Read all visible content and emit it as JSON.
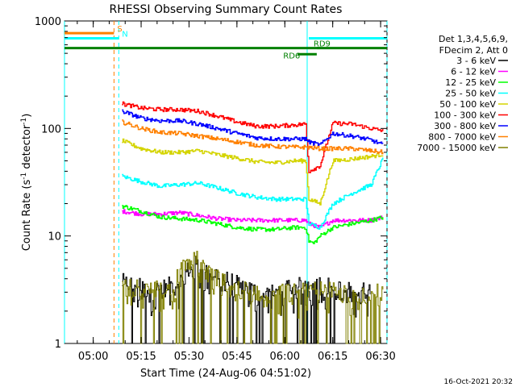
{
  "chart_data": {
    "type": "line",
    "title": "RHESSI Observing Summary Count Rates",
    "xlabel": "Start Time (24-Aug-06 04:51:02)",
    "ylabel": "Count Rate (s⁻¹ detector⁻¹)",
    "ylabel_parts": [
      "Count Rate (s",
      "-1",
      " detector",
      "-1",
      ")"
    ],
    "x_unit": "minutes after 04:51:02",
    "xlim": [
      0,
      101
    ],
    "ylim": [
      1,
      1000
    ],
    "yscale": "log",
    "xticks": [
      {
        "x": 9,
        "label": "05:00"
      },
      {
        "x": 24,
        "label": "05:15"
      },
      {
        "x": 39,
        "label": "05:30"
      },
      {
        "x": 54,
        "label": "05:45"
      },
      {
        "x": 69,
        "label": "06:00"
      },
      {
        "x": 84,
        "label": "06:15"
      },
      {
        "x": 99,
        "label": "06:30"
      }
    ],
    "yticks": [
      {
        "y": 1,
        "label": "1"
      },
      {
        "y": 10,
        "label": "10"
      },
      {
        "y": 100,
        "label": "100"
      },
      {
        "y": 1000,
        "label": "1000"
      }
    ],
    "legend_title": [
      "Det 1,3,4,5,6,9,",
      "FDecim 2, Att 0"
    ],
    "legend_position": "right",
    "timestamp": "16-Oct-2021 20:32",
    "series": [
      {
        "name": "3 - 6 keV",
        "color": "#000000",
        "x": [
          18,
          28,
          36,
          40,
          48,
          52,
          60,
          68,
          78,
          88,
          96
        ],
        "y": [
          3.0,
          2.5,
          3.0,
          4.5,
          3.5,
          3.0,
          2.5,
          2.5,
          3.0,
          2.5,
          2.5
        ]
      },
      {
        "name": "6 - 12 keV",
        "color": "#ff00ff",
        "x": [
          18,
          24,
          30,
          36,
          42,
          48,
          54,
          60,
          66,
          72,
          75.5,
          76.5,
          80,
          84,
          90,
          96,
          100
        ],
        "y": [
          17,
          16,
          16,
          16.5,
          15.5,
          14.5,
          14,
          14,
          14,
          14,
          14,
          13,
          12,
          14,
          14,
          14,
          15
        ]
      },
      {
        "name": "12 - 25 keV",
        "color": "#00ff00",
        "x": [
          18,
          24,
          30,
          36,
          42,
          48,
          54,
          60,
          66,
          72,
          75.5,
          76.5,
          78,
          80,
          84,
          90,
          96,
          100
        ],
        "y": [
          19,
          17,
          15,
          14.5,
          14,
          13,
          12,
          11.5,
          11.5,
          12,
          12,
          9,
          8.5,
          10,
          12,
          13,
          14,
          15
        ]
      },
      {
        "name": "25 - 50 keV",
        "color": "#00ffff",
        "x": [
          18,
          24,
          30,
          36,
          42,
          48,
          54,
          60,
          66,
          72,
          75.5,
          76.5,
          80,
          84,
          90,
          96,
          100
        ],
        "y": [
          36,
          32,
          29,
          30,
          31,
          28,
          25,
          23,
          22,
          22,
          22,
          13,
          12,
          20,
          25,
          30,
          55
        ]
      },
      {
        "name": "50 - 100 keV",
        "color": "#d4d400",
        "x": [
          18,
          24,
          30,
          36,
          42,
          48,
          54,
          60,
          66,
          72,
          75.5,
          76.5,
          80,
          84,
          90,
          96,
          100
        ],
        "y": [
          77,
          65,
          60,
          60,
          62,
          57,
          53,
          49,
          48,
          50,
          50,
          22,
          20,
          50,
          52,
          55,
          58
        ]
      },
      {
        "name": "100 - 300 keV",
        "color": "#ff0000",
        "x": [
          18,
          24,
          30,
          36,
          42,
          48,
          54,
          60,
          66,
          72,
          75.5,
          76.5,
          80,
          84,
          90,
          96,
          100
        ],
        "y": [
          170,
          155,
          150,
          150,
          145,
          130,
          115,
          105,
          105,
          108,
          110,
          40,
          45,
          112,
          110,
          100,
          95
        ]
      },
      {
        "name": "300 - 800 keV",
        "color": "#0000ff",
        "x": [
          18,
          24,
          30,
          36,
          42,
          48,
          54,
          60,
          66,
          72,
          75.5,
          76.5,
          80,
          84,
          90,
          96,
          100
        ],
        "y": [
          145,
          125,
          118,
          118,
          110,
          100,
          90,
          82,
          80,
          80,
          80,
          75,
          70,
          90,
          85,
          78,
          70
        ]
      },
      {
        "name": "800 - 7000 keV",
        "color": "#ff8000",
        "x": [
          18,
          24,
          30,
          36,
          42,
          48,
          54,
          60,
          66,
          72,
          76,
          80,
          84,
          90,
          96,
          100
        ],
        "y": [
          115,
          100,
          92,
          90,
          85,
          80,
          75,
          70,
          68,
          67,
          67,
          65,
          65,
          65,
          62,
          60
        ]
      },
      {
        "name": "7000 - 15000 keV",
        "color": "#808000",
        "x": [
          18,
          26,
          34,
          38,
          42,
          46,
          54,
          62,
          70,
          78,
          86,
          94,
          100
        ],
        "y": [
          2.8,
          2.5,
          2.8,
          4.8,
          5.0,
          3.5,
          2.6,
          2.4,
          2.4,
          2.5,
          2.5,
          2.4,
          2.4
        ]
      }
    ],
    "vertical_lines": [
      {
        "x": 0,
        "color": "#00ffff",
        "style": "solid"
      },
      {
        "x": 15.5,
        "color": "#ff8000",
        "style": "dashed"
      },
      {
        "x": 17,
        "color": "#00ffff",
        "style": "dashed"
      },
      {
        "x": 76,
        "color": "#00ffff",
        "style": "solid"
      },
      {
        "x": 101,
        "color": "#00ffff",
        "style": "dashed"
      }
    ],
    "flag_bars": [
      {
        "label": "S",
        "color": "#ff8000",
        "x0": 0,
        "x1": 15.5,
        "y": 770,
        "label_x": 16.5
      },
      {
        "label": "N",
        "color": "#00ffff",
        "x0": 0,
        "x1": 17,
        "y": 690,
        "label_x": 18
      },
      {
        "label": "",
        "color": "#00ffff",
        "x0": 76.5,
        "x1": 101,
        "y": 690
      },
      {
        "label": "",
        "color": "#008000",
        "x0": 0,
        "x1": 101,
        "y": 560
      },
      {
        "label": "RD6",
        "color": "#008000",
        "x0": 73,
        "x1": 79,
        "y": 490,
        "label_x": 68.5
      },
      {
        "label": "RD9",
        "color": "#008000",
        "x0": 79,
        "x1": 80,
        "y": 560,
        "label_x": 78
      }
    ]
  }
}
